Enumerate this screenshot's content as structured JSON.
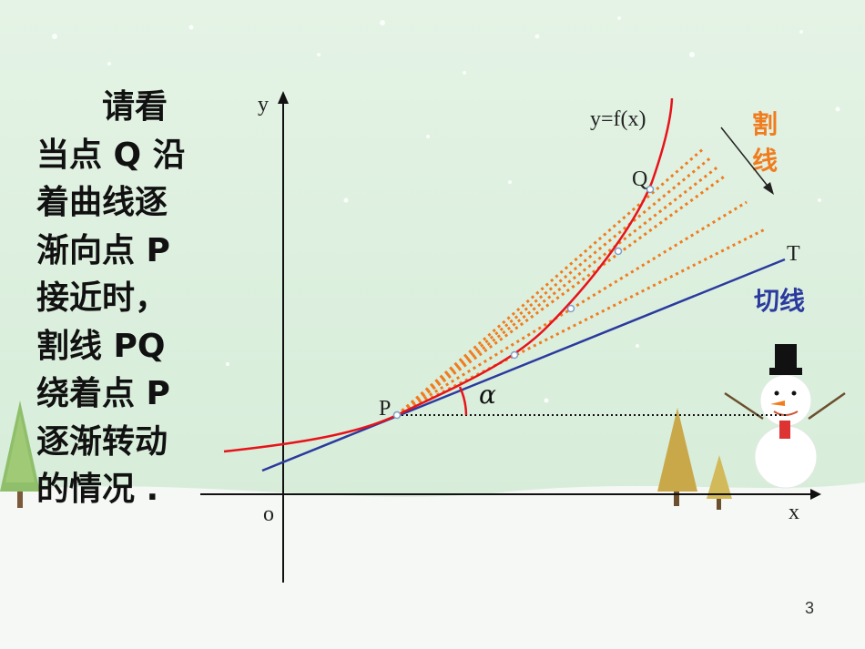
{
  "slide": {
    "paragraph_lines": [
      "　　请看",
      "当点 Q 沿",
      "着曲线逐",
      "渐向点 P",
      "接近时，",
      "割线 PQ",
      "绕着点 P",
      "逐渐转动",
      "的情况 ."
    ],
    "page_number": "3"
  },
  "diagram": {
    "axis_x_label": "x",
    "axis_y_label": "y",
    "origin_label": "o",
    "curve_label": "y=f(x)",
    "point_p_label": "P",
    "point_q_label": "Q",
    "tangent_end_label": "T",
    "angle_label": "α",
    "secant_label_line1": "割",
    "secant_label_line2": "线",
    "tangent_label": "切线",
    "colors": {
      "curve": "#e8131a",
      "tangent": "#2b3a9e",
      "secant": "#f07c1e",
      "axes": "#111111",
      "background_sky": "#dff0e0",
      "snow": "#f4f7f4"
    }
  }
}
